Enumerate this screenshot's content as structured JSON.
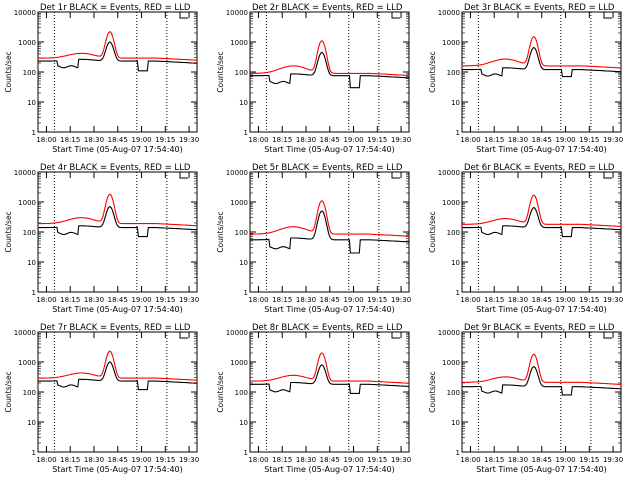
{
  "chart_data": [
    {
      "title": "Det 1r  BLACK = Events, RED = LLD",
      "xlabel": "Start Time (05-Aug-07 17:54:40)",
      "ylabel": "Counts/sec",
      "black_base": 230,
      "red_base": 290,
      "red_hump": 420,
      "peak_black": 1000,
      "peak_red": 2200,
      "gap_black": 150,
      "gap2_black": 110
    },
    {
      "title": "Det 2r  BLACK = Events, RED = LLD",
      "xlabel": "Start Time (05-Aug-07 17:54:40)",
      "ylabel": "Counts/sec",
      "black_base": 75,
      "red_base": 90,
      "red_hump": 160,
      "peak_black": 450,
      "peak_red": 1100,
      "gap_black": 45,
      "gap2_black": 30
    },
    {
      "title": "Det 3r  BLACK = Events, RED = LLD",
      "xlabel": "Start Time (05-Aug-07 17:54:40)",
      "ylabel": "Counts/sec",
      "black_base": 120,
      "red_base": 160,
      "red_hump": 270,
      "peak_black": 650,
      "peak_red": 1500,
      "gap_black": 80,
      "gap2_black": 70
    },
    {
      "title": "Det 4r  BLACK = Events, RED = LLD",
      "xlabel": "Start Time (05-Aug-07 17:54:40)",
      "ylabel": "Counts/sec",
      "black_base": 140,
      "red_base": 190,
      "red_hump": 300,
      "peak_black": 700,
      "peak_red": 1800,
      "gap_black": 90,
      "gap2_black": 70
    },
    {
      "title": "Det 5r  BLACK = Events, RED = LLD",
      "xlabel": "Start Time (05-Aug-07 17:54:40)",
      "ylabel": "Counts/sec",
      "black_base": 55,
      "red_base": 85,
      "red_hump": 150,
      "peak_black": 500,
      "peak_red": 1100,
      "gap_black": 30,
      "gap2_black": 20
    },
    {
      "title": "Det 6r  BLACK = Events, RED = LLD",
      "xlabel": "Start Time (05-Aug-07 17:54:40)",
      "ylabel": "Counts/sec",
      "black_base": 140,
      "red_base": 180,
      "red_hump": 280,
      "peak_black": 650,
      "peak_red": 1700,
      "gap_black": 90,
      "gap2_black": 70
    },
    {
      "title": "Det 7r  BLACK = Events, RED = LLD",
      "xlabel": "Start Time (05-Aug-07 17:54:40)",
      "ylabel": "Counts/sec",
      "black_base": 230,
      "red_base": 290,
      "red_hump": 430,
      "peak_black": 1000,
      "peak_red": 2300,
      "gap_black": 160,
      "gap2_black": 120
    },
    {
      "title": "Det 8r  BLACK = Events, RED = LLD",
      "xlabel": "Start Time (05-Aug-07 17:54:40)",
      "ylabel": "Counts/sec",
      "black_base": 180,
      "red_base": 230,
      "red_hump": 360,
      "peak_black": 800,
      "peak_red": 2000,
      "gap_black": 110,
      "gap2_black": 90
    },
    {
      "title": "Det 9r  BLACK = Events, RED = LLD",
      "xlabel": "Start Time (05-Aug-07 17:54:40)",
      "ylabel": "Counts/sec",
      "black_base": 150,
      "red_base": 210,
      "red_hump": 320,
      "peak_black": 700,
      "peak_red": 1800,
      "gap_black": 100,
      "gap2_black": 80
    }
  ],
  "shared": {
    "type": "line",
    "y_scale": "log",
    "ylim": [
      1,
      10000
    ],
    "y_ticks": [
      "1",
      "10",
      "100",
      "1000",
      "10000"
    ],
    "x_ticks": [
      "18:00",
      "18:15",
      "18:30",
      "18:45",
      "19:00",
      "19:15",
      "19:30"
    ],
    "series": [
      {
        "name": "Events",
        "color": "#000000"
      },
      {
        "name": "LLD",
        "color": "#ff0000"
      }
    ],
    "grid": false
  }
}
